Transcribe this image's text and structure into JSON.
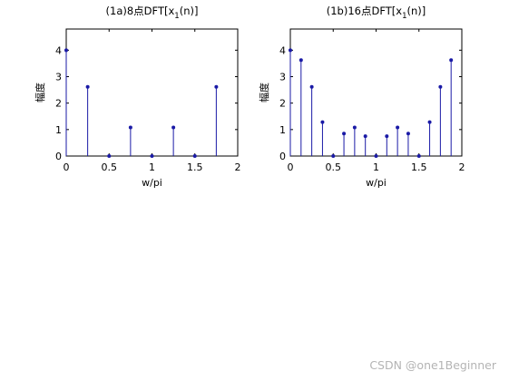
{
  "chart_data": [
    {
      "type": "stem",
      "title": {
        "main": "(1a)8点DFT[x",
        "sub": "1",
        "tail": "(n)]"
      },
      "xlabel": "w/pi",
      "ylabel": "幅度",
      "xlim": [
        0,
        2
      ],
      "ylim": [
        0,
        4.8
      ],
      "xticks": [
        "0",
        "0.5",
        "1",
        "1.5",
        "2"
      ],
      "yticks": [
        "0",
        "1",
        "2",
        "3",
        "4"
      ],
      "grid": false,
      "x": [
        0,
        0.25,
        0.5,
        0.75,
        1,
        1.25,
        1.5,
        1.75
      ],
      "y": [
        4,
        2.613,
        0,
        1.082,
        0,
        1.082,
        0,
        2.613
      ]
    },
    {
      "type": "stem",
      "title": {
        "main": "(1b)16点DFT[x",
        "sub": "1",
        "tail": "(n)]"
      },
      "xlabel": "w/pi",
      "ylabel": "幅度",
      "xlim": [
        0,
        2
      ],
      "ylim": [
        0,
        4.8
      ],
      "xticks": [
        "0",
        "0.5",
        "1",
        "1.5",
        "2"
      ],
      "yticks": [
        "0",
        "1",
        "2",
        "3",
        "4"
      ],
      "grid": false,
      "x": [
        0,
        0.125,
        0.25,
        0.375,
        0.5,
        0.625,
        0.75,
        0.875,
        1,
        1.125,
        1.25,
        1.375,
        1.5,
        1.625,
        1.75,
        1.875
      ],
      "y": [
        4,
        3.625,
        2.613,
        1.281,
        0,
        0.85,
        1.082,
        0.75,
        0,
        0.75,
        1.082,
        0.85,
        0,
        1.281,
        2.613,
        3.625
      ]
    }
  ],
  "colors": {
    "stem": "#1a1aa6",
    "axes": "#000000",
    "watermark": "#b4b4b4"
  },
  "watermark": "CSDN @one1Beginner"
}
